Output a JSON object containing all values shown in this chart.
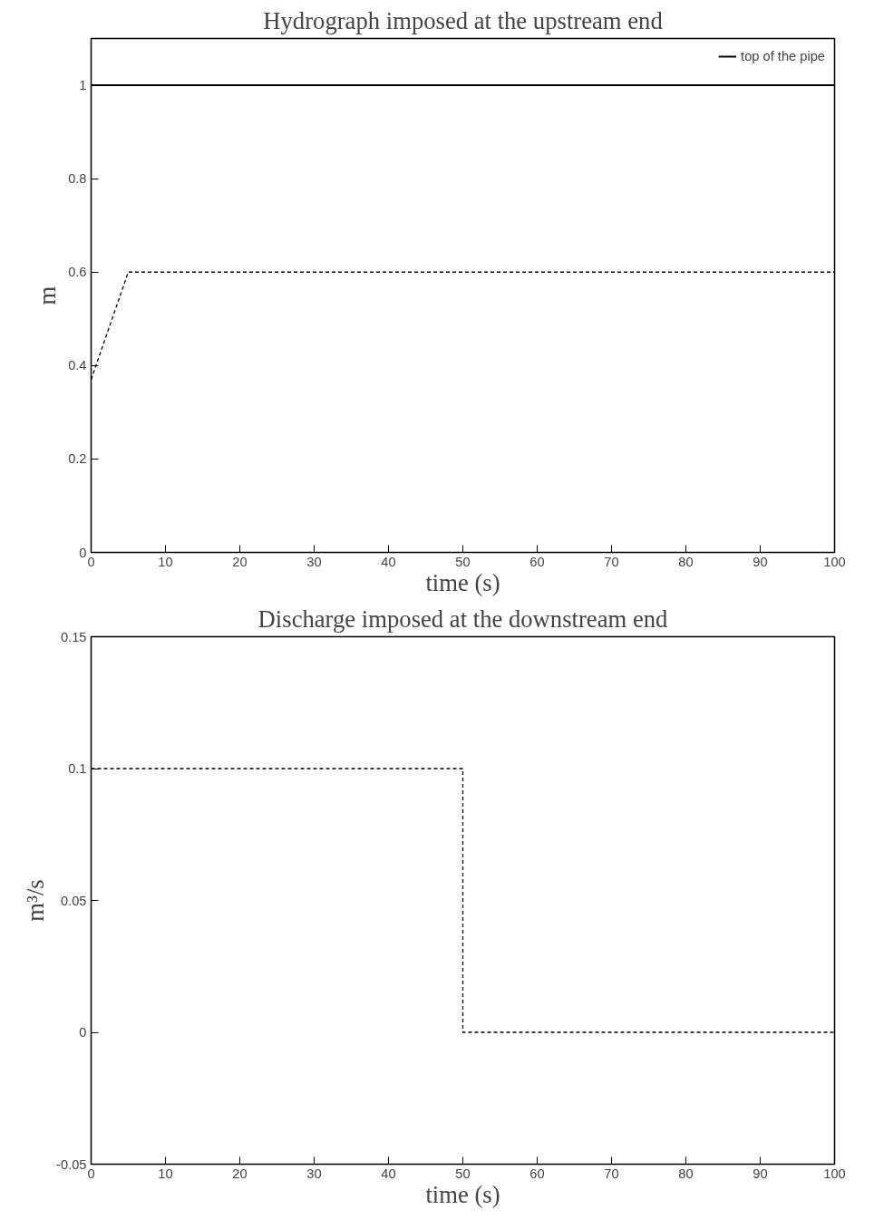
{
  "chart_data": [
    {
      "type": "line",
      "title": "Hydrograph imposed at the upstream end",
      "xlabel": "time (s)",
      "ylabel": "m",
      "xlim": [
        0,
        100
      ],
      "xticks": [
        0,
        10,
        20,
        30,
        40,
        50,
        60,
        70,
        80,
        90,
        100
      ],
      "ylim": [
        0,
        1.1
      ],
      "yticks": [
        0,
        0.2,
        0.4,
        0.6,
        0.8,
        1
      ],
      "grid": false,
      "legend": "top right",
      "series": [
        {
          "x": [
            0,
            5,
            100
          ],
          "values": [
            0.37,
            0.6,
            0.6
          ],
          "color": "#000000",
          "line_style": "dashed"
        },
        {
          "name": "top of the pipe",
          "x": [
            0,
            100
          ],
          "values": [
            1,
            1
          ],
          "color": "#000000",
          "line_style": "solid"
        }
      ]
    },
    {
      "type": "line",
      "title": "Discharge imposed at the downstream end",
      "xlabel": "time (s)",
      "ylabel": "m³/s",
      "xlim": [
        0,
        100
      ],
      "xticks": [
        0,
        10,
        20,
        30,
        40,
        50,
        60,
        70,
        80,
        90,
        100
      ],
      "ylim": [
        -0.05,
        0.15
      ],
      "yticks": [
        -0.05,
        0,
        0.05,
        0.1,
        0.15
      ],
      "grid": false,
      "series": [
        {
          "x": [
            0,
            50,
            50,
            100
          ],
          "values": [
            0.1,
            0.1,
            0,
            0
          ],
          "color": "#000000",
          "line_style": "dashed"
        }
      ]
    }
  ]
}
